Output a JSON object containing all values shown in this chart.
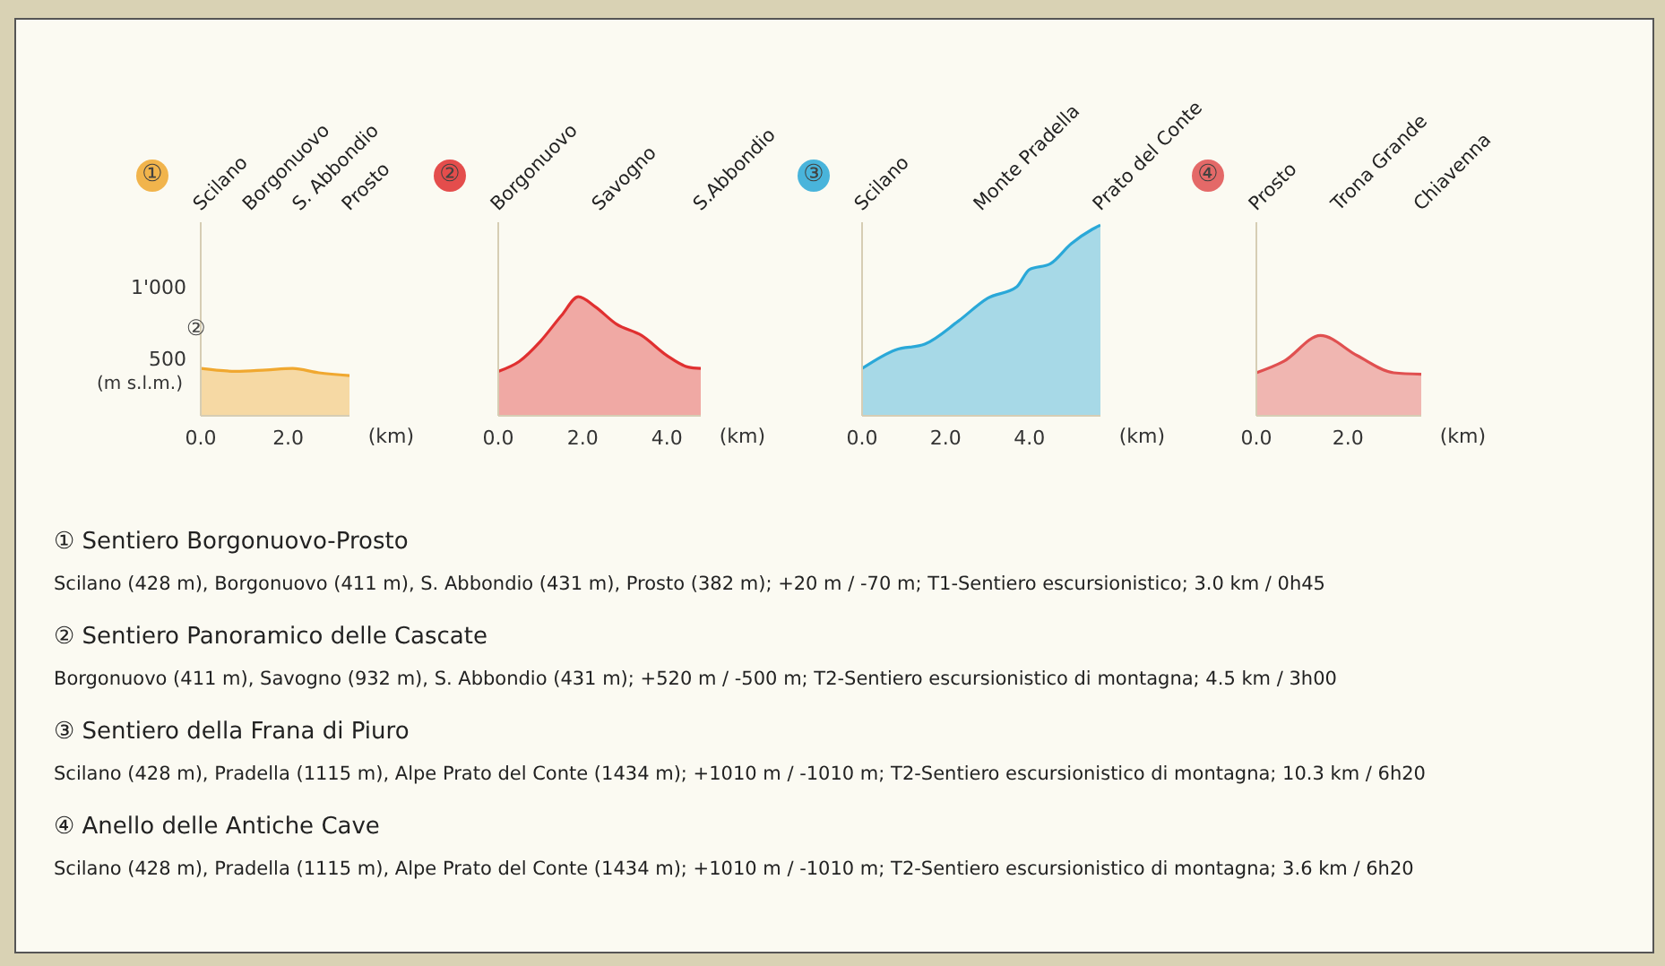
{
  "chart_data": [
    {
      "type": "area",
      "title": "①",
      "ylabel": "(m s.l.m.)",
      "xlabel": "(km)",
      "x": [
        0,
        0.8,
        1.5,
        2.1,
        2.7,
        3.4
      ],
      "series": [
        {
          "color": "#f0a830",
          "values": [
            430,
            410,
            420,
            430,
            400,
            380
          ]
        }
      ],
      "xlim": [
        0,
        3.4
      ],
      "ylim": [
        100,
        1450
      ],
      "xticks": [
        {
          "value": 0,
          "label": "0.0"
        },
        {
          "value": 2,
          "label": "2.0"
        }
      ],
      "yticks": [
        500,
        {
          "value": 1000,
          "label": "1'000"
        }
      ],
      "annotations": [
        "Scilano",
        "Borgonuovo",
        "S. Abbondio",
        "Prosto",
        "②"
      ]
    },
    {
      "type": "area",
      "title": "②",
      "xlabel": "(km)",
      "x": [
        0,
        0.5,
        1.0,
        1.5,
        1.9,
        2.3,
        2.8,
        3.4,
        4.0,
        4.5,
        4.8
      ],
      "series": [
        {
          "color": "#e03030",
          "values": [
            410,
            480,
            620,
            800,
            930,
            860,
            740,
            660,
            520,
            440,
            430
          ]
        }
      ],
      "xlim": [
        0,
        4.8
      ],
      "ylim": [
        100,
        1450
      ],
      "xticks": [
        {
          "value": 0,
          "label": "0.0"
        },
        {
          "value": 2,
          "label": "2.0"
        },
        {
          "value": 4,
          "label": "4.0"
        }
      ],
      "tick_labels": "x",
      "annotations": [
        "Borgonuovo",
        "Savogno",
        "S.Abbondio"
      ]
    },
    {
      "type": "area",
      "title": "③",
      "xlabel": "(km)",
      "x": [
        0,
        0.8,
        1.5,
        2.3,
        3.0,
        3.7,
        4.0,
        4.5,
        5.0,
        5.5,
        5.7
      ],
      "series": [
        {
          "color": "#2aa8d8",
          "values": [
            430,
            560,
            600,
            760,
            920,
            1000,
            1120,
            1160,
            1300,
            1400,
            1430
          ]
        }
      ],
      "xlim": [
        0,
        5.7
      ],
      "ylim": [
        100,
        1450
      ],
      "xticks": [
        {
          "value": 0,
          "label": "0.0"
        },
        {
          "value": 2,
          "label": "2.0"
        },
        {
          "value": 4,
          "label": "4.0"
        }
      ],
      "tick_labels": "x",
      "annotations": [
        "Scilano",
        "Monte Pradella",
        "Prato del Conte"
      ]
    },
    {
      "type": "area",
      "title": "④",
      "xlabel": "(km)",
      "x": [
        0,
        0.6,
        1.4,
        2.2,
        3.0,
        3.6
      ],
      "series": [
        {
          "color": "#e05050",
          "values": [
            400,
            480,
            660,
            520,
            400,
            390
          ]
        }
      ],
      "xlim": [
        0,
        3.6
      ],
      "ylim": [
        100,
        1450
      ],
      "xticks": [
        {
          "value": 0,
          "label": "0.0"
        },
        {
          "value": 2,
          "label": "2.0"
        }
      ],
      "tick_labels": "x",
      "annotations": [
        "Prosto",
        "Trona Grande",
        "Chiavenna"
      ]
    },
    {
      "type": "other",
      "annotations": [
        "① Sentiero Borgonuovo-Prosto",
        "Scilano (428 m), Borgonuovo (411 m), S. Abbondio (431 m), Prosto (382 m); +20 m / -70 m; T1-Sentiero escursionistico; 3.0 km / 0h45",
        "② Sentiero Panoramico delle Cascate",
        "Borgonuovo (411 m), Savogno (932 m), S. Abbondio (431 m); +520 m / -500 m; T2-Sentiero escursionistico di montagna; 4.5 km / 3h00",
        "③ Sentiero della Frana di Piuro",
        "Scilano (428 m), Pradella (1115 m), Alpe Prato del Conte (1434 m); +1010 m / -1010 m; T2-Sentiero escursionistico di montagna; 10.3 km / 6h20",
        "④ Anello delle Antiche Cave",
        "Scilano (428 m), Pradella (1115 m), Alpe Prato del Conte (1434 m); +1010 m / -1010 m; T2-Sentiero escursionistico di montagna; 3.6 km / 6h20"
      ]
    }
  ]
}
